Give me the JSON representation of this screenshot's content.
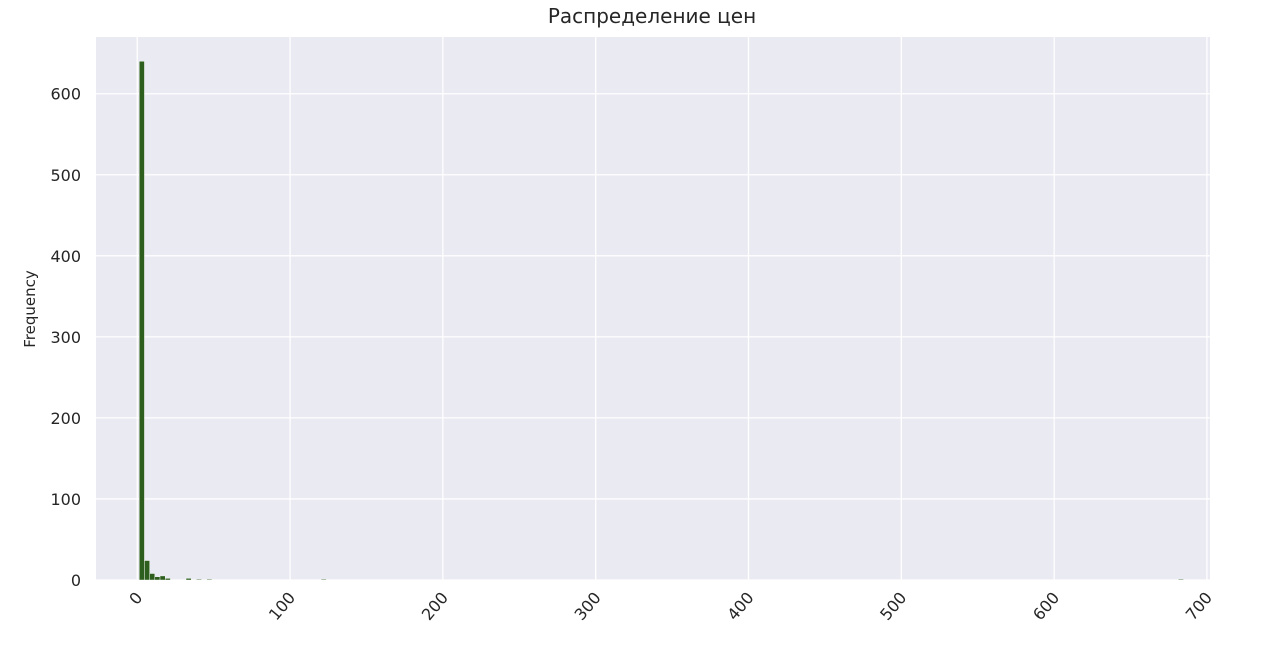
{
  "chart_data": {
    "type": "bar",
    "title": "Распределение цен",
    "xlabel": "",
    "ylabel": "Frequency",
    "xlim": [
      -27,
      702
    ],
    "ylim": [
      0,
      670
    ],
    "xticks": [
      "0",
      "100",
      "200",
      "300",
      "400",
      "500",
      "600",
      "700"
    ],
    "yticks": [
      "0",
      "100",
      "200",
      "300",
      "400",
      "500",
      "600"
    ],
    "grid": true,
    "bar_color": "#2e5e1e",
    "plot_background": "#eaeaf2",
    "bin_width": 3.4,
    "bins": [
      {
        "x": 3,
        "count": 640
      },
      {
        "x": 6.4,
        "count": 24
      },
      {
        "x": 9.8,
        "count": 8
      },
      {
        "x": 13.2,
        "count": 4
      },
      {
        "x": 16.6,
        "count": 5
      },
      {
        "x": 20,
        "count": 2
      },
      {
        "x": 33.6,
        "count": 2
      },
      {
        "x": 40.4,
        "count": 1
      },
      {
        "x": 47.2,
        "count": 1
      },
      {
        "x": 122,
        "count": 1
      },
      {
        "x": 683,
        "count": 1
      }
    ]
  }
}
